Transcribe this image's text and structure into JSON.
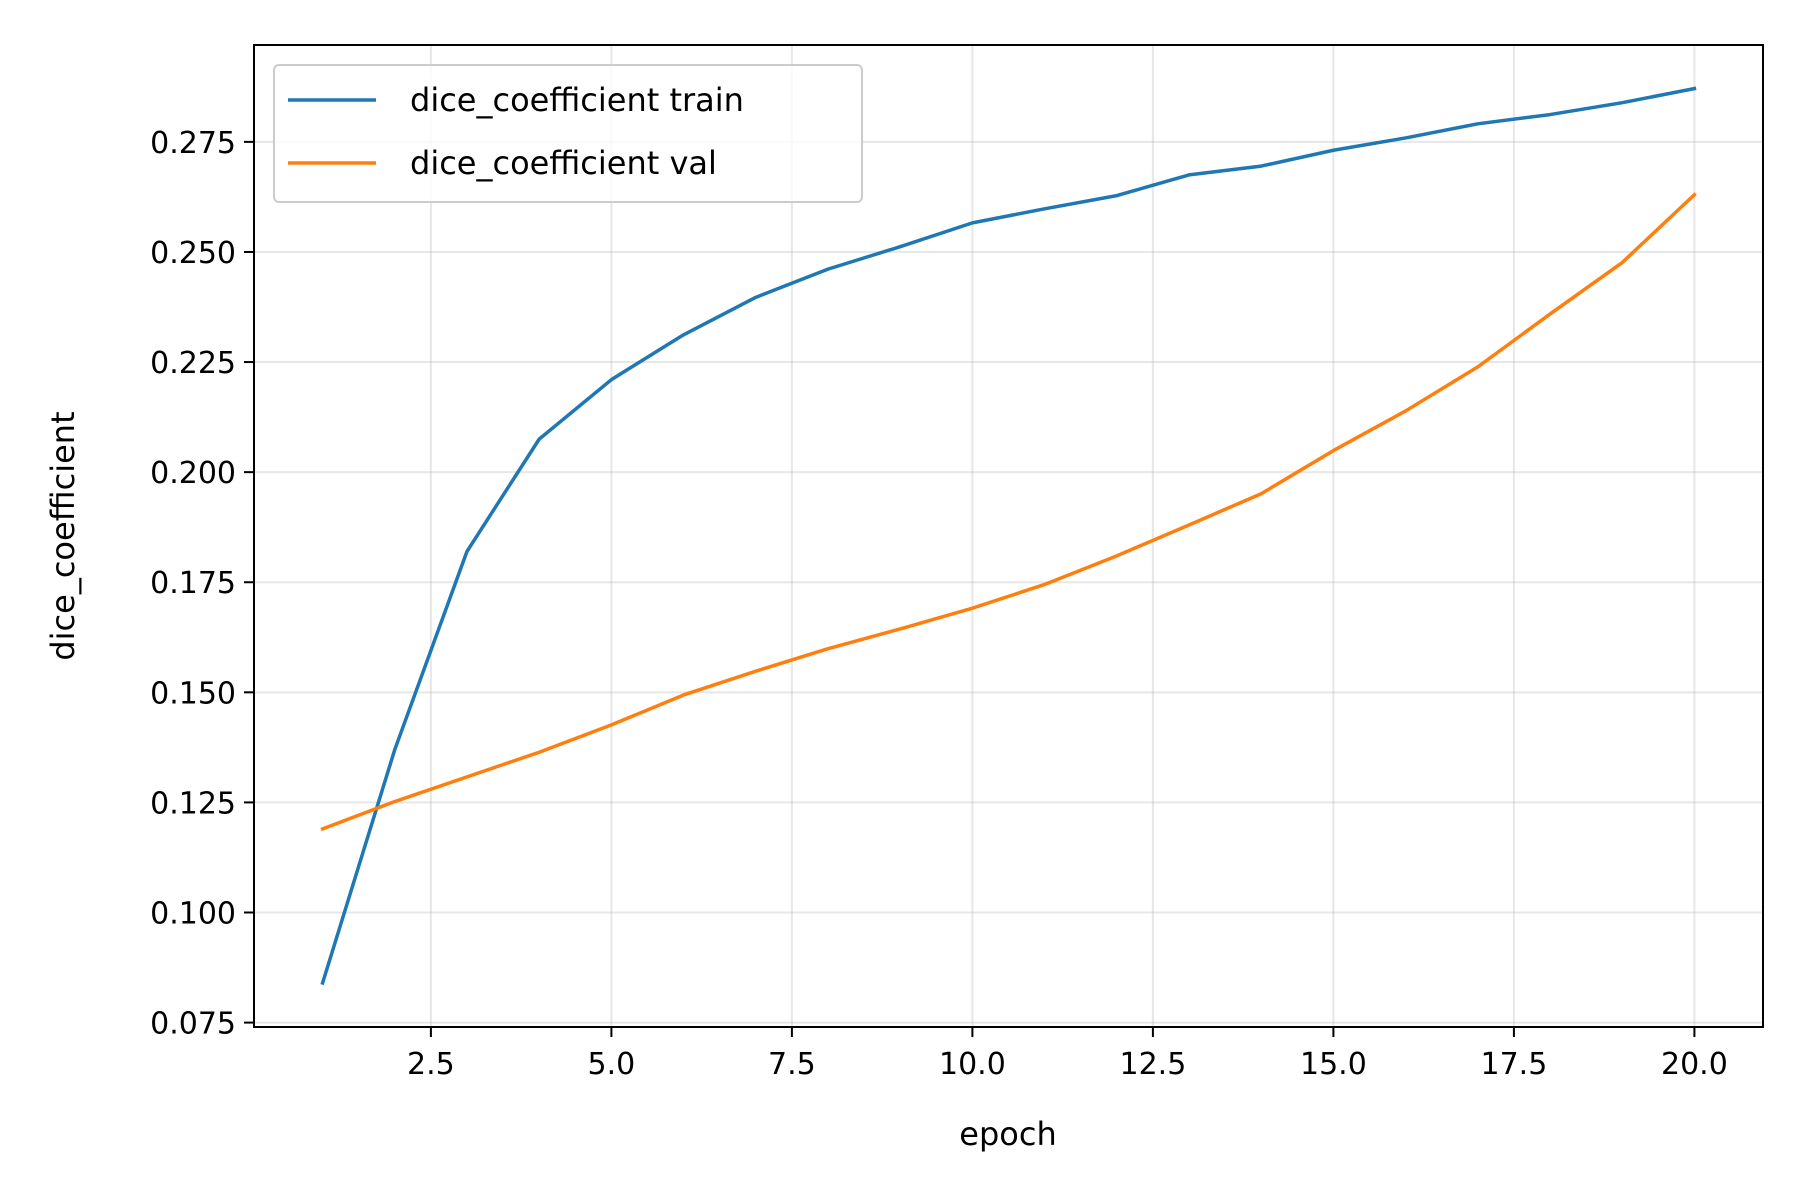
{
  "chart_data": {
    "type": "line",
    "title": "",
    "xlabel": "epoch",
    "ylabel": "dice_coefficient",
    "xlim": [
      0.05,
      20.95
    ],
    "ylim": [
      0.074,
      0.297
    ],
    "xticks": [
      2.5,
      5.0,
      7.5,
      10.0,
      12.5,
      15.0,
      17.5,
      20.0
    ],
    "xtick_labels": [
      "2.5",
      "5.0",
      "7.5",
      "10.0",
      "12.5",
      "15.0",
      "17.5",
      "20.0"
    ],
    "yticks": [
      0.075,
      0.1,
      0.125,
      0.15,
      0.175,
      0.2,
      0.225,
      0.25,
      0.275
    ],
    "ytick_labels": [
      "0.075",
      "0.100",
      "0.125",
      "0.150",
      "0.175",
      "0.200",
      "0.225",
      "0.250",
      "0.275"
    ],
    "grid": true,
    "legend_position": "top-left",
    "x": [
      1,
      2,
      3,
      4,
      5,
      6,
      7,
      8,
      9,
      10,
      11,
      12,
      13,
      14,
      15,
      16,
      17,
      18,
      19,
      20
    ],
    "series": [
      {
        "name": "dice_coefficient train",
        "color": "#1f77b4",
        "values": [
          0.084,
          0.137,
          0.182,
          0.2075,
          0.221,
          0.2312,
          0.2397,
          0.2461,
          0.2512,
          0.2566,
          0.2598,
          0.2628,
          0.2675,
          0.2695,
          0.2731,
          0.2759,
          0.2791,
          0.2812,
          0.2839,
          0.2871
        ]
      },
      {
        "name": "dice_coefficient val",
        "color": "#ff7f0e",
        "values": [
          0.119,
          0.1252,
          0.1308,
          0.1364,
          0.1426,
          0.1494,
          0.1548,
          0.1599,
          0.1644,
          0.1691,
          0.1745,
          0.181,
          0.188,
          0.1951,
          0.2049,
          0.2139,
          0.2239,
          0.2359,
          0.2476,
          0.263
        ]
      }
    ]
  }
}
